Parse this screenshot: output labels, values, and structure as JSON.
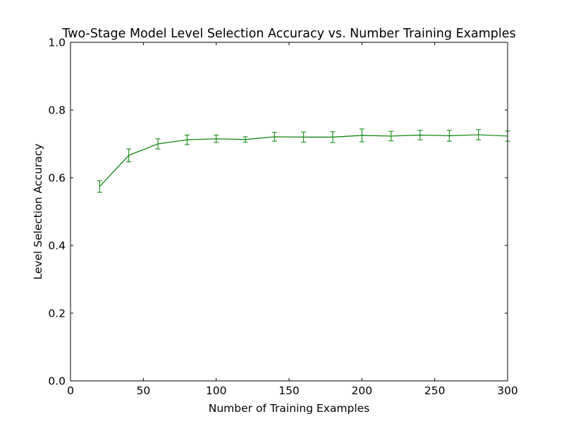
{
  "chart_data": {
    "type": "line",
    "title": "Two-Stage Model Level Selection Accuracy vs. Number Training Examples",
    "xlabel": "Number of Training Examples",
    "ylabel": "Level Selection Accuracy",
    "xlim": [
      0,
      300
    ],
    "ylim": [
      0.0,
      1.0
    ],
    "xticks": [
      0,
      50,
      100,
      150,
      200,
      250,
      300
    ],
    "yticks": [
      0.0,
      0.2,
      0.4,
      0.6,
      0.8,
      1.0
    ],
    "xtick_labels": [
      "0",
      "50",
      "100",
      "150",
      "200",
      "250",
      "300"
    ],
    "ytick_labels": [
      "0.0",
      "0.2",
      "0.4",
      "0.6",
      "0.8",
      "1.0"
    ],
    "grid": false,
    "series": [
      {
        "color": "#008000",
        "x": [
          20,
          40,
          60,
          80,
          100,
          120,
          140,
          160,
          180,
          200,
          220,
          240,
          260,
          280,
          300
        ],
        "y": [
          0.574,
          0.666,
          0.7,
          0.712,
          0.715,
          0.713,
          0.721,
          0.72,
          0.72,
          0.725,
          0.723,
          0.726,
          0.724,
          0.727,
          0.723
        ],
        "yerr": [
          0.017,
          0.019,
          0.015,
          0.014,
          0.011,
          0.008,
          0.013,
          0.015,
          0.016,
          0.019,
          0.014,
          0.014,
          0.016,
          0.015,
          0.015
        ]
      }
    ]
  }
}
